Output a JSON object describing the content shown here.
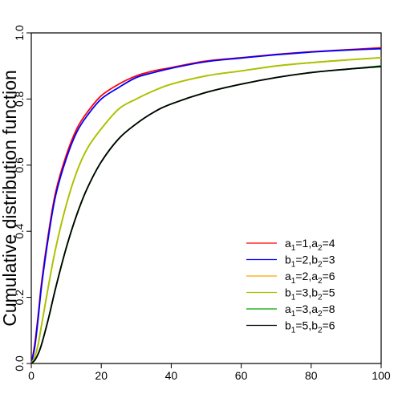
{
  "chart_data": {
    "type": "line",
    "title": "",
    "xlabel": "",
    "ylabel": "Cumulative distribution function",
    "xlim": [
      0,
      100
    ],
    "ylim": [
      0,
      1.0
    ],
    "x_ticks": [
      "0",
      "20",
      "40",
      "60",
      "80",
      "100"
    ],
    "y_ticks": [
      "0.0",
      "0.2",
      "0.4",
      "0.6",
      "0.8",
      "1.0"
    ],
    "grid": false,
    "legend_position": "bottom-right",
    "x": [
      0,
      1,
      2,
      3,
      5,
      7,
      10,
      13,
      16,
      20,
      25,
      30,
      35,
      40,
      50,
      60,
      70,
      80,
      90,
      100
    ],
    "series": [
      {
        "name": "a1=1,a2=4",
        "label": {
          "p1": "a",
          "s1": "1",
          "mid": "=1,",
          "p2": "a",
          "s2": "2",
          "end": "=4"
        },
        "color": "#ff0000",
        "values": [
          0.0,
          0.06,
          0.15,
          0.25,
          0.4,
          0.52,
          0.63,
          0.71,
          0.76,
          0.81,
          0.845,
          0.87,
          0.885,
          0.895,
          0.915,
          0.925,
          0.935,
          0.943,
          0.949,
          0.955
        ]
      },
      {
        "name": "b1=2,b2=3",
        "label": {
          "p1": "b",
          "s1": "1",
          "mid": "=2,",
          "p2": "b",
          "s2": "2",
          "end": "=3"
        },
        "color": "#0000ff",
        "values": [
          0.0,
          0.05,
          0.14,
          0.24,
          0.39,
          0.51,
          0.62,
          0.7,
          0.75,
          0.8,
          0.835,
          0.865,
          0.88,
          0.893,
          0.913,
          0.924,
          0.934,
          0.942,
          0.948,
          0.952
        ]
      },
      {
        "name": "a1=2,a2=6",
        "label": {
          "p1": "a",
          "s1": "1",
          "mid": "=2,",
          "p2": "a",
          "s2": "2",
          "end": "=6"
        },
        "color": "#ffa500",
        "values": [
          0.0,
          0.02,
          0.06,
          0.12,
          0.24,
          0.35,
          0.48,
          0.58,
          0.65,
          0.71,
          0.77,
          0.8,
          0.825,
          0.845,
          0.87,
          0.885,
          0.9,
          0.91,
          0.918,
          0.925
        ]
      },
      {
        "name": "b1=3,b2=5",
        "label": {
          "p1": "b",
          "s1": "1",
          "mid": "=3,",
          "p2": "b",
          "s2": "2",
          "end": "=5"
        },
        "color": "#a6c400",
        "values": [
          0.0,
          0.02,
          0.06,
          0.12,
          0.24,
          0.35,
          0.48,
          0.58,
          0.65,
          0.71,
          0.77,
          0.8,
          0.825,
          0.845,
          0.87,
          0.885,
          0.9,
          0.91,
          0.918,
          0.925
        ]
      },
      {
        "name": "a1=3,a2=8",
        "label": {
          "p1": "a",
          "s1": "1",
          "mid": "=3,",
          "p2": "a",
          "s2": "2",
          "end": "=8"
        },
        "color": "#00a000",
        "values": [
          0.0,
          0.01,
          0.03,
          0.06,
          0.14,
          0.23,
          0.35,
          0.45,
          0.53,
          0.61,
          0.68,
          0.725,
          0.76,
          0.785,
          0.82,
          0.845,
          0.865,
          0.88,
          0.89,
          0.9
        ]
      },
      {
        "name": "b1=5,b2=6",
        "label": {
          "p1": "b",
          "s1": "1",
          "mid": "=5,",
          "p2": "b",
          "s2": "2",
          "end": "=6"
        },
        "color": "#000000",
        "values": [
          0.0,
          0.01,
          0.03,
          0.06,
          0.14,
          0.23,
          0.35,
          0.45,
          0.53,
          0.61,
          0.68,
          0.725,
          0.76,
          0.785,
          0.82,
          0.845,
          0.865,
          0.88,
          0.89,
          0.898
        ]
      }
    ]
  }
}
